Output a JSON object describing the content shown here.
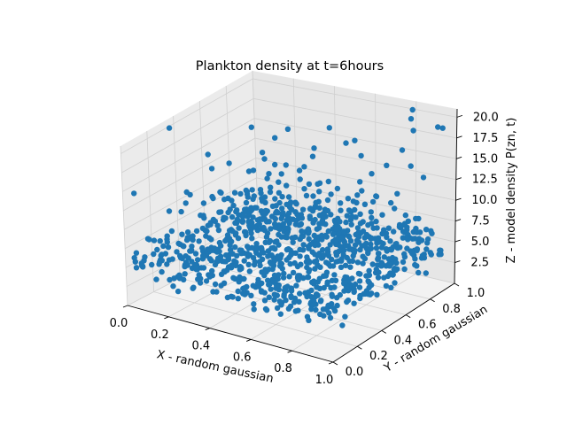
{
  "chart_data": {
    "type": "scatter",
    "projection": "3d",
    "title": "Plankton density at t=6hours",
    "xlabel": "X - random gaussian",
    "ylabel": "Y - random gaussian",
    "zlabel": "Z - model density P(zn, t)",
    "xlim": [
      0,
      1
    ],
    "ylim": [
      0,
      1
    ],
    "zlim": [
      0,
      21
    ],
    "xticks": [
      "0.0",
      "0.2",
      "0.4",
      "0.6",
      "0.8",
      "1.0"
    ],
    "yticks": [
      "0.0",
      "0.2",
      "0.4",
      "0.6",
      "0.8",
      "1.0"
    ],
    "zticks": [
      "2.5",
      "5.0",
      "7.5",
      "10.0",
      "12.5",
      "15.0",
      "17.5",
      "20.0"
    ],
    "grid": true,
    "marker_color": "#1f77b4",
    "point_count": 1000,
    "distribution": {
      "x": "uniform 0–1",
      "y": "uniform 0–1",
      "z": "concentrated between 2.5 and 10, sparse up to 20"
    }
  }
}
